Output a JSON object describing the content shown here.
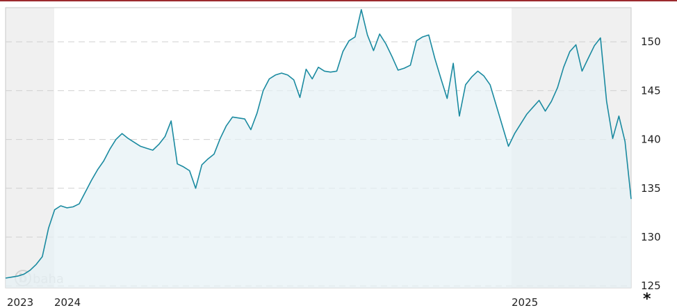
{
  "chart_data": {
    "type": "area",
    "y_ticks": [
      125,
      130,
      135,
      140,
      145,
      150
    ],
    "ylim": [
      124.8,
      153.5
    ],
    "x_labels": [
      "2023",
      "2024",
      "2025"
    ],
    "watermark": "baha",
    "footnote": "*",
    "grid": true,
    "colors": {
      "line": "#1a8aa0",
      "fill": "#e6f1f5",
      "shade": "#f0f0f0",
      "border": "#c8c8c8",
      "grid": "#d0d0d0",
      "accent": "#9c2a2e"
    },
    "series": [
      {
        "values": [
          125.8,
          125.9,
          126.0,
          126.2,
          126.6,
          127.2,
          128.0,
          130.9,
          132.8,
          133.2,
          133.0,
          133.1,
          133.4,
          134.6,
          135.8,
          136.9,
          137.8,
          139.0,
          140.0,
          140.6,
          140.1,
          139.7,
          139.3,
          139.1,
          138.9,
          139.5,
          140.3,
          141.9,
          137.5,
          137.2,
          136.8,
          135.0,
          137.4,
          138.0,
          138.5,
          140.1,
          141.4,
          142.3,
          142.2,
          142.1,
          141.0,
          142.7,
          145.0,
          146.2,
          146.6,
          146.8,
          146.6,
          146.1,
          144.3,
          147.2,
          146.2,
          147.4,
          147.0,
          146.9,
          147.0,
          149.0,
          150.1,
          150.5,
          153.3,
          150.7,
          149.1,
          150.8,
          149.8,
          148.5,
          147.1,
          147.3,
          147.6,
          150.1,
          150.5,
          150.7,
          148.3,
          146.2,
          144.2,
          147.8,
          142.4,
          145.6,
          146.4,
          147.0,
          146.5,
          145.6,
          143.5,
          141.4,
          139.3,
          140.6,
          141.6,
          142.6,
          143.3,
          144.0,
          142.9,
          143.9,
          145.3,
          147.4,
          149.0,
          149.7,
          147.0,
          148.3,
          149.6,
          150.4,
          143.9,
          140.1,
          142.4,
          139.8,
          133.9
        ]
      }
    ]
  }
}
